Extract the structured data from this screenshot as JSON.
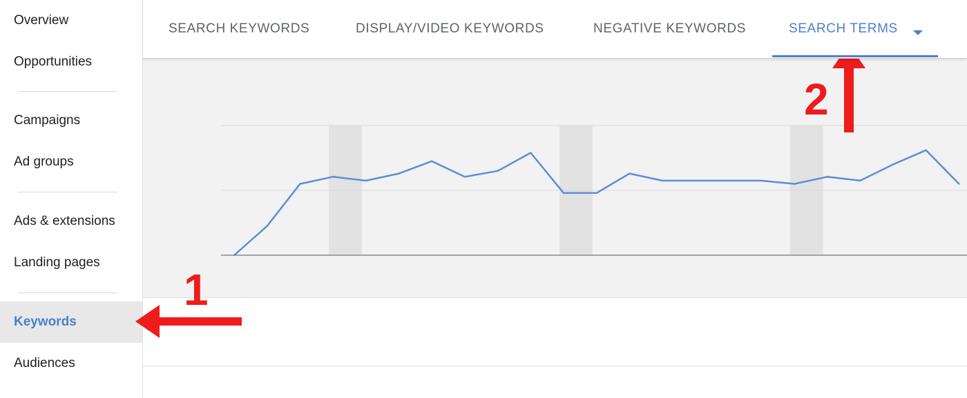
{
  "sidebar": {
    "items": [
      {
        "label": "Overview",
        "name": "sidebar-item-overview",
        "active": false
      },
      {
        "label": "Opportunities",
        "name": "sidebar-item-opportunities",
        "active": false
      },
      {
        "label": "Campaigns",
        "name": "sidebar-item-campaigns",
        "active": false
      },
      {
        "label": "Ad groups",
        "name": "sidebar-item-ad-groups",
        "active": false
      },
      {
        "label": "Ads & extensions",
        "name": "sidebar-item-ads-extensions",
        "active": false
      },
      {
        "label": "Landing pages",
        "name": "sidebar-item-landing-pages",
        "active": false
      },
      {
        "label": "Keywords",
        "name": "sidebar-item-keywords",
        "active": true
      },
      {
        "label": "Audiences",
        "name": "sidebar-item-audiences",
        "active": false
      }
    ]
  },
  "tabs": [
    {
      "label": "SEARCH KEYWORDS",
      "name": "tab-search-keywords",
      "active": false
    },
    {
      "label": "DISPLAY/VIDEO KEYWORDS",
      "name": "tab-display-video-keywords",
      "active": false
    },
    {
      "label": "NEGATIVE KEYWORDS",
      "name": "tab-negative-keywords",
      "active": false
    },
    {
      "label": "SEARCH TERMS",
      "name": "tab-search-terms",
      "active": true
    }
  ],
  "annotations": {
    "step1": "1",
    "step2": "2"
  },
  "colors": {
    "accent": "#4a7fd1",
    "annotation": "#ee1c1c",
    "line": "#5b8dd9",
    "weekend_band": "#e2e2e2"
  },
  "chart_data": {
    "type": "line",
    "xlabel": "",
    "ylabel": "",
    "ylim": [
      0,
      2
    ],
    "grid": true,
    "series": [
      {
        "values": [
          0,
          0.45,
          1.1,
          1.21,
          1.15,
          1.26,
          1.45,
          1.21,
          1.3,
          1.58,
          0.96,
          0.96,
          1.26,
          1.15,
          1.15,
          1.15,
          1.15,
          1.1,
          1.21,
          1.15,
          1.4,
          1.62,
          1.1
        ]
      }
    ],
    "weekend_bands": [
      3,
      10,
      17
    ]
  }
}
